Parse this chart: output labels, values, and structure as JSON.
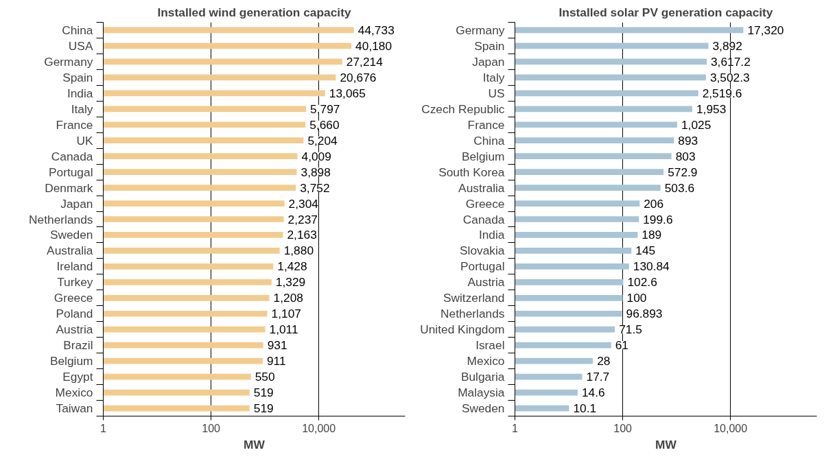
{
  "chart_data": [
    {
      "type": "bar",
      "orientation": "horizontal",
      "title": "Installed wind generation capacity",
      "xlabel": "MW",
      "log": "x",
      "grid": "x",
      "categories": [
        "China",
        "USA",
        "Germany",
        "Spain",
        "India",
        "Italy",
        "France",
        "UK",
        "Canada",
        "Portugal",
        "Denmark",
        "Japan",
        "Netherlands",
        "Sweden",
        "Australia",
        "Ireland",
        "Turkey",
        "Greece",
        "Poland",
        "Austria",
        "Brazil",
        "Belgium",
        "Egypt",
        "Mexico",
        "Taiwan"
      ],
      "values": [
        44733,
        40180,
        27214,
        20676,
        13065,
        5797,
        5660,
        5204,
        4009,
        3898,
        3752,
        2304,
        2237,
        2163,
        1880,
        1428,
        1329,
        1208,
        1107,
        1011,
        931,
        911,
        550,
        519,
        519
      ],
      "value_labels": [
        "44,733",
        "40,180",
        "27,214",
        "20,676",
        "13,065",
        "5,797",
        "5,660",
        "5,204",
        "4,009",
        "3,898",
        "3,752",
        "2,304",
        "2,237",
        "2,163",
        "1,880",
        "1,428",
        "1,329",
        "1,208",
        "1,107",
        "1,011",
        "931",
        "911",
        "550",
        "519",
        "519"
      ],
      "color": "#f2cc8f",
      "xlim": [
        1,
        400000
      ],
      "xticks": [
        1,
        100,
        {
          "value": 10000,
          "label": "10,000"
        }
      ]
    },
    {
      "type": "bar",
      "orientation": "horizontal",
      "title": "Installed solar PV generation capacity",
      "xlabel": "MW",
      "log": "x",
      "grid": "x",
      "categories": [
        "Germany",
        "Spain",
        "Japan",
        "Italy",
        "US",
        "Czech Republic",
        "France",
        "China",
        "Belgium",
        "South Korea",
        "Australia",
        "Greece",
        "Canada",
        "India",
        "Slovakia",
        "Portugal",
        "Austria",
        "Switzerland",
        "Netherlands",
        "United Kingdom",
        "Israel",
        "Mexico",
        "Bulgaria",
        "Malaysia",
        "Sweden"
      ],
      "values": [
        17320,
        3892,
        3617.2,
        3502.3,
        2519.6,
        1953,
        1025,
        893,
        803,
        572.9,
        503.6,
        206,
        199.6,
        189,
        145,
        130.84,
        102.6,
        100,
        96.893,
        71.5,
        61,
        28,
        17.7,
        14.6,
        10.1
      ],
      "value_labels": [
        "17,320",
        "3,892",
        "3,617.2",
        "3,502.3",
        "2,519.6",
        "1,953",
        "1,025",
        "893",
        "803",
        "572.9",
        "503.6",
        "206",
        "199.6",
        "189",
        "145",
        "130.84",
        "102.6",
        "100",
        "96.893",
        "71.5",
        "61",
        "28",
        "17.7",
        "14.6",
        "10.1"
      ],
      "color": "#a8c4d5",
      "xlim": [
        1,
        400000
      ],
      "xticks": [
        1,
        100,
        {
          "value": 10000,
          "label": "10,000"
        }
      ]
    }
  ]
}
